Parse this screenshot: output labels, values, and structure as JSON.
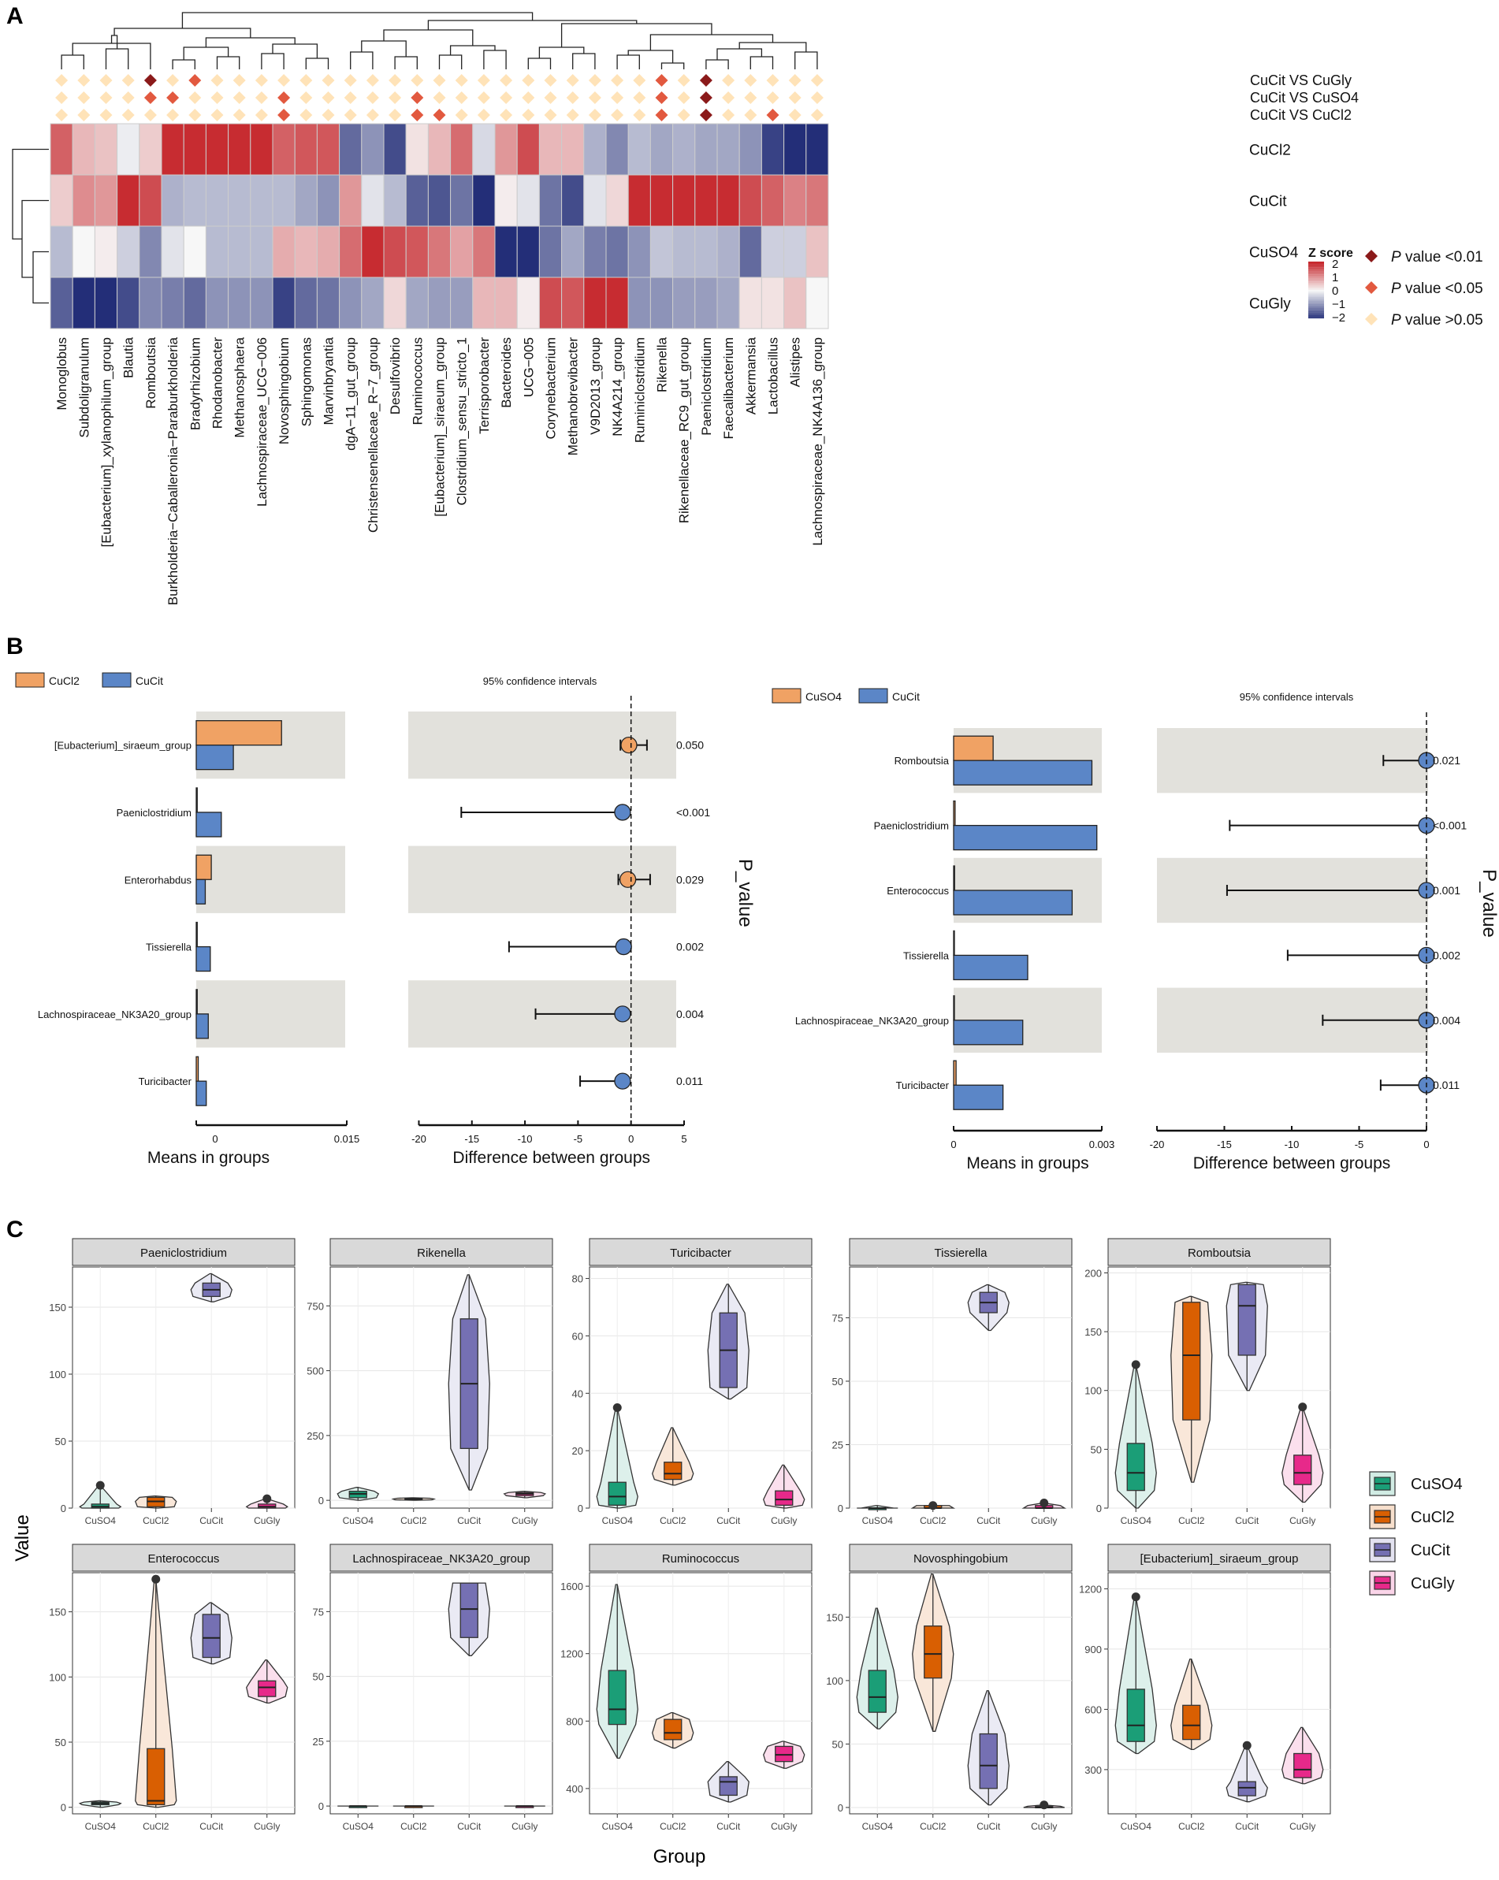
{
  "panels": {
    "A": {
      "label": "A",
      "genera": [
        "Monoglobus",
        "Subdoligranulum",
        "[Eubacterium]_xylanophilum_group",
        "Blautia",
        "Romboutsia",
        "Burkholderia−Caballeronia−Paraburkholderia",
        "Bradyrhizobium",
        "Rhodanobacter",
        "Methanosphaera",
        "Lachnospiraceae_UCG−006",
        "Novosphingobium",
        "Sphingomonas",
        "Marvinbryantia",
        "dgA−11_gut_group",
        "Christensenellaceae_R−7_group",
        "Desulfovibrio",
        "Ruminococcus",
        "[Eubacterium]_siraeum_group",
        "Clostridium_sensu_stricto_1",
        "Terrisporobacter",
        "Bacteroides",
        "UCG−005",
        "Corynebacterium",
        "Methanobrevibacter",
        "V9D2013_group",
        "NK4A214_group",
        "Ruminiclostridium",
        "Rikenella",
        "Rikenellaceae_RC9_gut_group",
        "Paeniclostridium",
        "Faecalibacterium",
        "Akkermansia",
        "Lactobacillus",
        "Alistipes",
        "Lachnospiraceae_NK4A136_group"
      ],
      "rows": [
        "CuCl2",
        "CuCit",
        "CuSO4",
        "CuGly"
      ],
      "zscores": [
        [
          1.4,
          0.6,
          0.5,
          -0.1,
          0.4,
          1.9,
          1.9,
          1.9,
          1.9,
          1.9,
          1.4,
          1.5,
          1.5,
          -1.4,
          -1.0,
          -1.7,
          0.2,
          0.6,
          1.3,
          -0.3,
          0.9,
          1.6,
          0.6,
          0.6,
          -0.7,
          -1.1,
          -0.6,
          -0.8,
          -0.7,
          -0.8,
          -0.8,
          -1.0,
          -1.8,
          -2.0,
          -2.1
        ],
        [
          0.4,
          1.0,
          0.9,
          1.9,
          1.6,
          -0.7,
          -0.6,
          -0.6,
          -0.6,
          -0.6,
          -0.6,
          -0.8,
          -1.0,
          0.9,
          -0.2,
          -0.6,
          -1.5,
          -1.6,
          -1.3,
          -2.0,
          0.1,
          -0.2,
          -1.3,
          -1.7,
          -0.2,
          0.3,
          1.9,
          1.9,
          1.9,
          1.9,
          1.9,
          1.6,
          1.4,
          1.1,
          1.2
        ],
        [
          -0.6,
          0.0,
          0.1,
          -0.4,
          -1.1,
          -0.2,
          0.0,
          -0.6,
          -0.6,
          -0.6,
          0.7,
          0.6,
          0.7,
          1.3,
          1.9,
          1.6,
          1.5,
          1.2,
          0.8,
          1.2,
          -2.2,
          -2.0,
          -1.3,
          -0.8,
          -1.2,
          -1.3,
          -1.0,
          -0.5,
          -0.6,
          -0.6,
          -0.7,
          -1.4,
          -0.4,
          -0.4,
          0.5
        ],
        [
          -1.5,
          -2.1,
          -2.2,
          -1.7,
          -1.1,
          -1.2,
          -1.4,
          -1.0,
          -1.0,
          -1.0,
          -1.8,
          -1.4,
          -1.3,
          -1.0,
          -0.8,
          0.3,
          -0.8,
          -0.9,
          -0.9,
          0.6,
          0.6,
          0.1,
          1.6,
          1.5,
          1.9,
          1.9,
          -1.0,
          -1.0,
          -0.9,
          -0.9,
          -0.8,
          0.2,
          0.2,
          0.5,
          0.0
        ]
      ],
      "comparisons": [
        "CuCit VS CuGly",
        "CuCit VS CuSO4",
        "CuCit VS CuCl2"
      ],
      "significance": [
        [
          0,
          0,
          0,
          0,
          2,
          0,
          1,
          0,
          0,
          0,
          0,
          0,
          0,
          0,
          0,
          0,
          0,
          0,
          0,
          0,
          0,
          0,
          0,
          0,
          0,
          0,
          0,
          1,
          0,
          2,
          0,
          0,
          0,
          0,
          0
        ],
        [
          0,
          0,
          0,
          0,
          1,
          1,
          0,
          0,
          0,
          0,
          1,
          0,
          0,
          0,
          0,
          0,
          1,
          0,
          0,
          0,
          0,
          0,
          0,
          0,
          0,
          0,
          0,
          1,
          0,
          2,
          0,
          0,
          0,
          0,
          0
        ],
        [
          0,
          0,
          0,
          0,
          0,
          0,
          0,
          0,
          0,
          0,
          1,
          0,
          0,
          0,
          0,
          0,
          1,
          1,
          0,
          0,
          0,
          0,
          0,
          0,
          0,
          0,
          0,
          1,
          0,
          2,
          0,
          0,
          1,
          0,
          0
        ]
      ],
      "legend_title": "Z score",
      "legend_ticks": [
        "2",
        "1",
        "0",
        "−1",
        "−2"
      ],
      "p_legend": {
        "prefix": "P",
        "items": [
          " value <0.01",
          " value <0.05",
          " value >0.05"
        ]
      },
      "p_colors": [
        "#ffe3b8",
        "#e2593f",
        "#8b1a1a"
      ],
      "colors": {
        "high": "#c42127",
        "mid": "#f7f7f7",
        "low": "#232e78"
      }
    },
    "B": {
      "label": "B",
      "left": {
        "legend": [
          "CuCl2",
          "CuCit"
        ],
        "ci_title": "95% confidence intervals",
        "taxa": [
          "[Eubacterium]_siraeum_group",
          "Paeniclostridium",
          "Enterorhabdus",
          "Tissierella",
          "Lachnospiraceae_NK3A20_group",
          "Turicibacter"
        ],
        "means_a": [
          0.0085,
          0.0001,
          0.0015,
          0.0001,
          0.0001,
          0.0002
        ],
        "means_b": [
          0.0037,
          0.0025,
          0.0009,
          0.0014,
          0.0012,
          0.001
        ],
        "diff": [
          -0.2,
          -0.8,
          -0.3,
          -0.7,
          -0.8,
          -0.8
        ],
        "ci_low": [
          -1.0,
          -16.0,
          -1.2,
          -11.5,
          -9.0,
          -4.8
        ],
        "ci_high": [
          1.5,
          -0.8,
          1.8,
          -0.7,
          -0.8,
          -0.8
        ],
        "winner": [
          "a",
          "b",
          "a",
          "b",
          "b",
          "b"
        ],
        "pvalues": [
          "0.050",
          "<0.001",
          "0.029",
          "0.002",
          "0.004",
          "0.011"
        ],
        "mean_ticks": [
          "0",
          "0.015"
        ],
        "mean_max": 0.015,
        "diff_ticks": [
          -20,
          -15,
          -10,
          -5,
          0,
          5
        ],
        "diff_range": [
          -21,
          5
        ],
        "xlabel_means": "Means in groups",
        "xlabel_diff": "Difference between groups",
        "pvalue_label": "P_value"
      },
      "right": {
        "legend": [
          "CuSO4",
          "CuCit"
        ],
        "ci_title": "95% confidence intervals",
        "taxa": [
          "Romboutsia",
          "Paeniclostridium",
          "Enterococcus",
          "Tissierella",
          "Lachnospiraceae_NK3A20_group",
          "Turicibacter"
        ],
        "means_a": [
          0.0008,
          3e-05,
          2e-05,
          0.0,
          0.0,
          5e-05
        ],
        "means_b": [
          0.0028,
          0.0029,
          0.0024,
          0.0015,
          0.0014,
          0.001
        ],
        "diff": [
          0,
          0,
          0,
          0,
          0,
          0
        ],
        "ci_low": [
          -3.2,
          -14.6,
          -14.8,
          -10.3,
          -7.7,
          -3.4
        ],
        "ci_high": [
          0,
          0,
          0,
          0,
          0,
          0
        ],
        "winner": [
          "b",
          "b",
          "b",
          "b",
          "b",
          "b"
        ],
        "pvalues": [
          "0.021",
          "<0.001",
          "0.001",
          "0.002",
          "0.004",
          "0.011"
        ],
        "mean_ticks": [
          "0",
          "0.003"
        ],
        "mean_max": 0.003,
        "diff_ticks": [
          -20,
          -15,
          -10,
          -5,
          0
        ],
        "diff_range": [
          -20,
          0
        ],
        "xlabel_means": "Means in groups",
        "xlabel_diff": "Difference between groups",
        "pvalue_label": "P_value"
      },
      "colors": {
        "a": "#f0a264",
        "b": "#5b86c7"
      }
    },
    "C": {
      "label": "C",
      "ylabel": "Value",
      "xlabel": "Group",
      "groups": [
        "CuSO4",
        "CuCl2",
        "CuCit",
        "CuGly"
      ],
      "colors": {
        "CuSO4": "#1b9e77",
        "CuCl2": "#d95f02",
        "CuCit": "#7570b3",
        "CuGly": "#e7298a"
      },
      "chart_data": [
        {
          "title": "Paeniclostridium",
          "ylim": [
            0,
            180
          ],
          "ticks": [
            0,
            50,
            100,
            150
          ],
          "boxes": [
            [
              0,
              0,
              1,
              3,
              17
            ],
            [
              0,
              1,
              5,
              8,
              9
            ],
            [
              154,
              158,
              163,
              168,
              175
            ],
            [
              0,
              0,
              1,
              3,
              7
            ]
          ],
          "outliers": [
            [
              1,
              17
            ],
            [
              4,
              7
            ]
          ]
        },
        {
          "title": "Rikenella",
          "ylim": [
            -30,
            900
          ],
          "ticks": [
            0,
            250,
            500,
            750
          ],
          "boxes": [
            [
              0,
              10,
              25,
              35,
              50
            ],
            [
              0,
              2,
              5,
              8,
              10
            ],
            [
              40,
              200,
              450,
              700,
              870
            ],
            [
              10,
              18,
              25,
              30,
              35
            ]
          ],
          "outliers": []
        },
        {
          "title": "Turicibacter",
          "ylim": [
            0,
            84
          ],
          "ticks": [
            0,
            20,
            40,
            60,
            80
          ],
          "boxes": [
            [
              0,
              1,
              4,
              9,
              35
            ],
            [
              8,
              10,
              12,
              16,
              28
            ],
            [
              38,
              42,
              55,
              68,
              78
            ],
            [
              0,
              1,
              3,
              6,
              15
            ]
          ],
          "outliers": [
            [
              1,
              35
            ]
          ]
        },
        {
          "title": "Tissierella",
          "ylim": [
            0,
            95
          ],
          "ticks": [
            0,
            25,
            50,
            75
          ],
          "boxes": [
            [
              0,
              0,
              0,
              0,
              1
            ],
            [
              0,
              0,
              0,
              1,
              1
            ],
            [
              70,
              77,
              81,
              85,
              88
            ],
            [
              0,
              0,
              0,
              1,
              2
            ]
          ],
          "outliers": [
            [
              2,
              1
            ],
            [
              4,
              2
            ]
          ]
        },
        {
          "title": "Romboutsia",
          "ylim": [
            0,
            205
          ],
          "ticks": [
            0,
            50,
            100,
            150,
            200
          ],
          "boxes": [
            [
              0,
              15,
              30,
              55,
              122
            ],
            [
              22,
              75,
              130,
              175,
              180
            ],
            [
              100,
              130,
              172,
              190,
              192
            ],
            [
              5,
              20,
              30,
              45,
              86
            ]
          ],
          "outliers": [
            [
              1,
              122
            ],
            [
              4,
              86
            ]
          ]
        },
        {
          "title": "Enterococcus",
          "ylim": [
            -5,
            180
          ],
          "ticks": [
            0,
            50,
            100,
            150
          ],
          "boxes": [
            [
              0,
              2,
              3,
              4,
              5
            ],
            [
              0,
              2,
              5,
              45,
              175
            ],
            [
              110,
              115,
              130,
              148,
              157
            ],
            [
              80,
              85,
              92,
              97,
              113
            ]
          ],
          "outliers": [
            [
              2,
              175
            ]
          ]
        },
        {
          "title": "Lachnospiraceae_NK3A20_group",
          "ylim": [
            -3,
            90
          ],
          "ticks": [
            0,
            25,
            50,
            75
          ],
          "boxes": [
            [
              0,
              0,
              0,
              0,
              0
            ],
            [
              0,
              0,
              0,
              0,
              0
            ],
            [
              58,
              65,
              76,
              86,
              86
            ],
            [
              0,
              0,
              0,
              0,
              0
            ]
          ],
          "outliers": []
        },
        {
          "title": "Ruminococcus",
          "ylim": [
            250,
            1680
          ],
          "ticks": [
            400,
            800,
            1200,
            1600
          ],
          "boxes": [
            [
              580,
              780,
              870,
              1100,
              1610
            ],
            [
              640,
              690,
              730,
              810,
              850
            ],
            [
              320,
              360,
              440,
              470,
              560
            ],
            [
              520,
              560,
              600,
              650,
              680
            ]
          ],
          "outliers": []
        },
        {
          "title": "Novosphingobium",
          "ylim": [
            -5,
            185
          ],
          "ticks": [
            0,
            50,
            100,
            150
          ],
          "boxes": [
            [
              62,
              75,
              87,
              108,
              157
            ],
            [
              60,
              102,
              121,
              143,
              184
            ],
            [
              2,
              15,
              33,
              58,
              92
            ],
            [
              0,
              0,
              0,
              1,
              2
            ]
          ],
          "outliers": [
            [
              4,
              2
            ]
          ]
        },
        {
          "title": "[Eubacterium]_siraeum_group",
          "ylim": [
            80,
            1280
          ],
          "ticks": [
            300,
            600,
            900,
            1200
          ],
          "boxes": [
            [
              380,
              440,
              520,
              700,
              1160
            ],
            [
              400,
              450,
              520,
              620,
              850
            ],
            [
              140,
              170,
              210,
              240,
              420
            ],
            [
              230,
              260,
              300,
              380,
              510
            ]
          ],
          "outliers": [
            [
              1,
              1160
            ],
            [
              3,
              420
            ]
          ]
        }
      ]
    }
  }
}
